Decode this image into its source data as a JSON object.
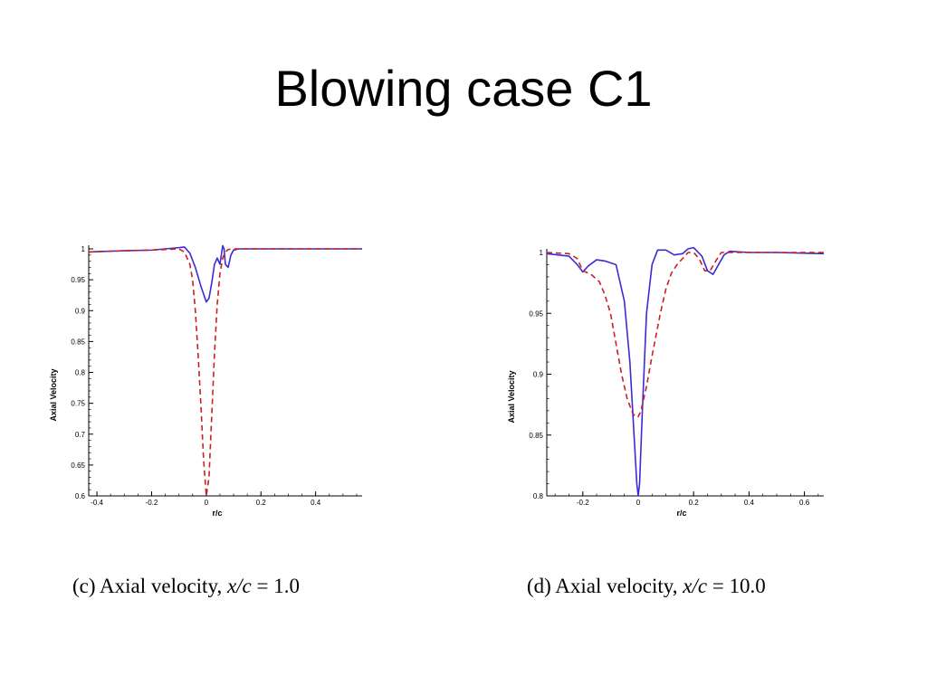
{
  "slide": {
    "title": "Blowing case C1"
  },
  "captions": {
    "c": {
      "prefix": "(c) Axial velocity, ",
      "math": "x/c",
      "suffix": " = 1.0"
    },
    "d": {
      "prefix": "(d) Axial velocity, ",
      "math": "x/c",
      "suffix": " = 10.0"
    }
  },
  "colors": {
    "solid_series": "#3a2bd8",
    "dashed_series": "#cc1f1f",
    "axis": "#000000"
  },
  "chart_data": [
    {
      "id": "c",
      "type": "line",
      "title": "",
      "xlabel": "r/c",
      "ylabel": "Axial Velocity",
      "xlim": [
        -0.43,
        0.57
      ],
      "ylim": [
        0.6,
        1.0
      ],
      "xticks": [
        -0.4,
        -0.2,
        0,
        0.2,
        0.4
      ],
      "xtick_labels": [
        "-0.4",
        "-0.2",
        "0",
        "0.2",
        "0.4"
      ],
      "yticks": [
        0.6,
        0.65,
        0.7,
        0.75,
        0.8,
        0.85,
        0.9,
        0.95,
        1.0
      ],
      "ytick_labels": [
        "0.6",
        "0.65",
        "0.7",
        "0.75",
        "0.8",
        "0.85",
        "0.9",
        "0.95",
        "1"
      ],
      "grid": false,
      "series": [
        {
          "style": "solid",
          "x": [
            -0.43,
            -0.3,
            -0.2,
            -0.1,
            -0.08,
            -0.06,
            -0.04,
            -0.02,
            0.0,
            0.01,
            0.02,
            0.03,
            0.04,
            0.05,
            0.06,
            0.065,
            0.07,
            0.08,
            0.09,
            0.1,
            0.12,
            0.2,
            0.4,
            0.57
          ],
          "y": [
            0.995,
            0.997,
            0.998,
            1.002,
            1.003,
            0.993,
            0.97,
            0.94,
            0.914,
            0.92,
            0.945,
            0.975,
            0.985,
            0.975,
            1.005,
            1.0,
            0.975,
            0.97,
            0.99,
            0.998,
            1.0,
            1.0,
            1.0,
            1.0
          ]
        },
        {
          "style": "dashed",
          "x": [
            -0.43,
            -0.3,
            -0.2,
            -0.1,
            -0.08,
            -0.06,
            -0.05,
            -0.04,
            -0.03,
            -0.02,
            -0.01,
            0.0,
            0.01,
            0.02,
            0.03,
            0.04,
            0.05,
            0.06,
            0.07,
            0.08,
            0.1,
            0.2,
            0.4,
            0.57
          ],
          "y": [
            0.995,
            0.997,
            0.998,
            1.0,
            0.995,
            0.975,
            0.95,
            0.9,
            0.83,
            0.75,
            0.66,
            0.6,
            0.63,
            0.73,
            0.83,
            0.91,
            0.96,
            0.985,
            0.995,
            0.999,
            1.0,
            1.0,
            1.0,
            1.0
          ]
        }
      ]
    },
    {
      "id": "d",
      "type": "line",
      "title": "",
      "xlabel": "r/c",
      "ylabel": "Axial Velocity",
      "xlim": [
        -0.33,
        0.67
      ],
      "ylim": [
        0.8,
        1.0
      ],
      "xticks": [
        -0.2,
        0,
        0.2,
        0.4,
        0.6
      ],
      "xtick_labels": [
        "-0.2",
        "0",
        "0.2",
        "0.4",
        "0.6"
      ],
      "yticks": [
        0.8,
        0.85,
        0.9,
        0.95,
        1.0
      ],
      "ytick_labels": [
        "0.8",
        "0.85",
        "0.9",
        "0.95",
        "1"
      ],
      "grid": false,
      "series": [
        {
          "style": "solid",
          "x": [
            -0.33,
            -0.25,
            -0.22,
            -0.2,
            -0.18,
            -0.15,
            -0.12,
            -0.08,
            -0.05,
            -0.03,
            -0.015,
            -0.005,
            0.0,
            0.005,
            0.015,
            0.03,
            0.05,
            0.07,
            0.1,
            0.13,
            0.16,
            0.18,
            0.2,
            0.23,
            0.25,
            0.27,
            0.29,
            0.31,
            0.33,
            0.4,
            0.5,
            0.67
          ],
          "y": [
            0.999,
            0.997,
            0.99,
            0.984,
            0.989,
            0.994,
            0.993,
            0.99,
            0.96,
            0.91,
            0.85,
            0.81,
            0.8,
            0.81,
            0.87,
            0.95,
            0.99,
            1.002,
            1.002,
            0.998,
            0.999,
            1.003,
            1.004,
            0.997,
            0.985,
            0.982,
            0.99,
            0.998,
            1.001,
            1.0,
            1.0,
            0.999
          ]
        },
        {
          "style": "dashed",
          "x": [
            -0.33,
            -0.25,
            -0.22,
            -0.2,
            -0.17,
            -0.14,
            -0.12,
            -0.1,
            -0.08,
            -0.06,
            -0.04,
            -0.02,
            -0.01,
            0.0,
            0.01,
            0.03,
            0.05,
            0.08,
            0.1,
            0.12,
            0.14,
            0.16,
            0.18,
            0.2,
            0.22,
            0.24,
            0.26,
            0.28,
            0.3,
            0.33,
            0.4,
            0.5,
            0.67
          ],
          "y": [
            1.0,
            0.999,
            0.995,
            0.985,
            0.982,
            0.976,
            0.965,
            0.95,
            0.925,
            0.9,
            0.88,
            0.868,
            0.865,
            0.865,
            0.87,
            0.89,
            0.915,
            0.95,
            0.97,
            0.983,
            0.99,
            0.995,
            1.0,
            1.0,
            0.995,
            0.985,
            0.985,
            0.993,
            1.0,
            1.0,
            1.0,
            1.0,
            1.0
          ]
        }
      ]
    }
  ]
}
